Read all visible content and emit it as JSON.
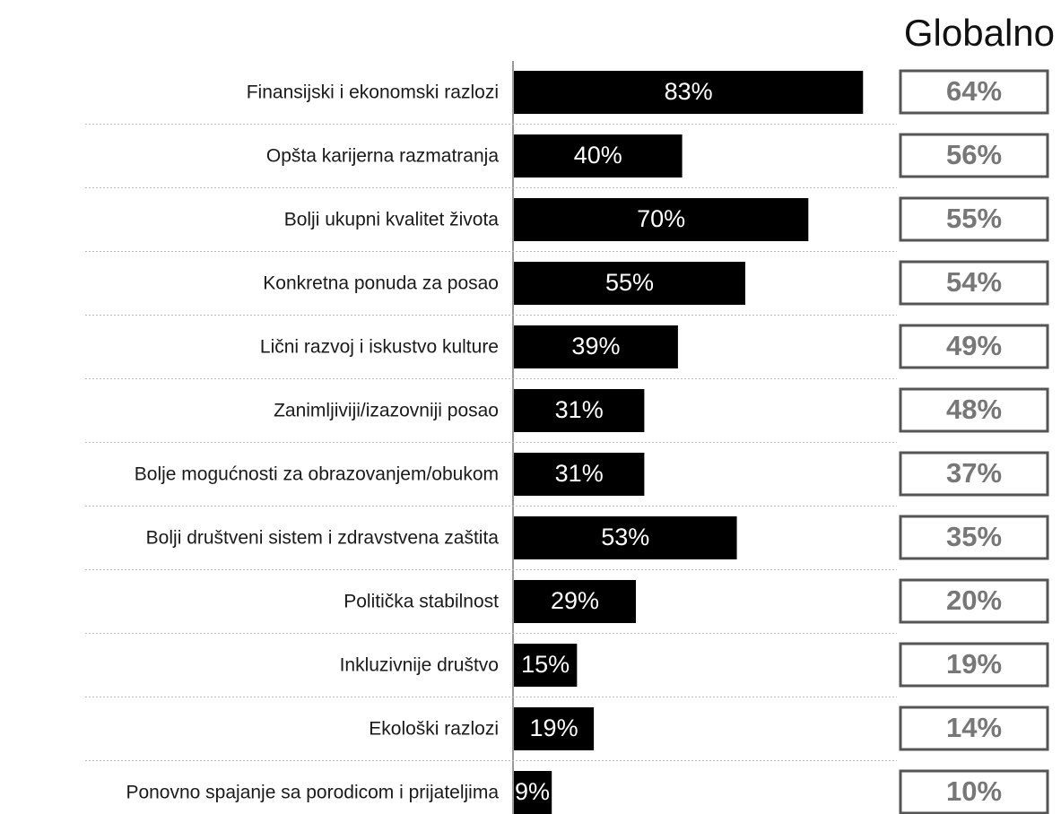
{
  "chart_data": {
    "type": "bar",
    "orientation": "horizontal",
    "color": "#000000",
    "categories": [
      "Finansijski i ekonomski razlozi",
      "Opšta karijerna razmatranja",
      "Bolji ukupni kvalitet života",
      "Konkretna ponuda za posao",
      "Lični razvoj i iskustvo kulture",
      "Zanimljiviji/izazovniji posao",
      "Bolje mogućnosti za obrazovanjem/obukom",
      "Bolji društveni sistem i zdravstvena zaštita",
      "Politička stabilnost",
      "Inkluzivnije društvo",
      "Ekološki razlozi",
      "Ponovno spajanje sa porodicom i prijateljima"
    ],
    "values": [
      83,
      40,
      70,
      55,
      39,
      31,
      31,
      53,
      29,
      15,
      19,
      9
    ],
    "value_labels": [
      "83%",
      "40%",
      "70%",
      "55%",
      "39%",
      "31%",
      "31%",
      "53%",
      "29%",
      "15%",
      "19%",
      "9%"
    ],
    "global": {
      "title": "Globalno",
      "values": [
        64,
        56,
        55,
        54,
        49,
        48,
        37,
        35,
        20,
        19,
        14,
        10
      ],
      "value_labels": [
        "64%",
        "56%",
        "55%",
        "54%",
        "49%",
        "48%",
        "37%",
        "35%",
        "20%",
        "19%",
        "14%",
        "10%"
      ]
    }
  }
}
